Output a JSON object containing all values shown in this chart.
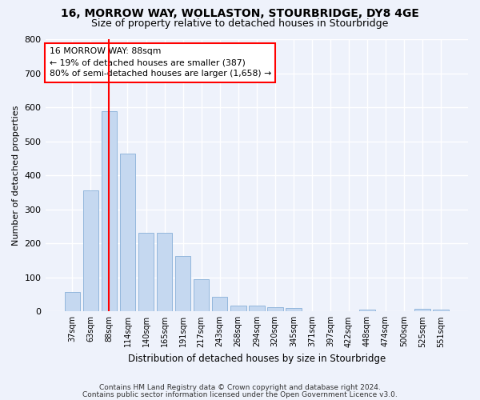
{
  "title1": "16, MORROW WAY, WOLLASTON, STOURBRIDGE, DY8 4GE",
  "title2": "Size of property relative to detached houses in Stourbridge",
  "xlabel": "Distribution of detached houses by size in Stourbridge",
  "ylabel": "Number of detached properties",
  "categories": [
    "37sqm",
    "63sqm",
    "88sqm",
    "114sqm",
    "140sqm",
    "165sqm",
    "191sqm",
    "217sqm",
    "243sqm",
    "268sqm",
    "294sqm",
    "320sqm",
    "345sqm",
    "371sqm",
    "397sqm",
    "422sqm",
    "448sqm",
    "474sqm",
    "500sqm",
    "525sqm",
    "551sqm"
  ],
  "values": [
    57,
    355,
    588,
    465,
    232,
    230,
    162,
    95,
    42,
    18,
    18,
    12,
    10,
    0,
    0,
    0,
    5,
    0,
    0,
    8,
    5
  ],
  "bar_color": "#c5d8f0",
  "bar_edge_color": "#88b0d8",
  "property_line_x": 2,
  "property_line_color": "red",
  "annotation_line1": "16 MORROW WAY: 88sqm",
  "annotation_line2": "← 19% of detached houses are smaller (387)",
  "annotation_line3": "80% of semi-detached houses are larger (1,658) →",
  "annotation_box_color": "white",
  "annotation_box_edge": "red",
  "ylim": [
    0,
    800
  ],
  "yticks": [
    0,
    100,
    200,
    300,
    400,
    500,
    600,
    700,
    800
  ],
  "footer1": "Contains HM Land Registry data © Crown copyright and database right 2024.",
  "footer2": "Contains public sector information licensed under the Open Government Licence v3.0.",
  "bg_color": "#eef2fb",
  "plot_bg_color": "#eef2fb",
  "title_fontsize": 10,
  "subtitle_fontsize": 9
}
